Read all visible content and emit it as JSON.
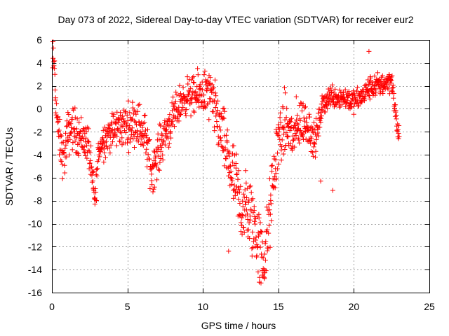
{
  "chart_data": {
    "type": "scatter",
    "title": "Day 073 of 2022, Sidereal Day-to-day VTEC variation (SDTVAR) for receiver eur2",
    "xlabel": "GPS time / hours",
    "ylabel": "SDTVAR / TECUs",
    "xlim": [
      0,
      25
    ],
    "ylim": [
      -16,
      6
    ],
    "xticks": [
      0,
      5,
      10,
      15,
      20,
      25
    ],
    "yticks": [
      -16,
      -14,
      -12,
      -10,
      -8,
      -6,
      -4,
      -2,
      0,
      2,
      4,
      6
    ],
    "grid": true,
    "marker": "+",
    "marker_color": "#ff0000",
    "series": [
      {
        "name": "SDTVAR",
        "profile": [
          [
            0.0,
            4.4
          ],
          [
            0.15,
            4.2
          ],
          [
            0.25,
            1.0
          ],
          [
            0.4,
            -2.0
          ],
          [
            0.6,
            -3.5
          ],
          [
            0.8,
            -4.5
          ],
          [
            1.0,
            -2.5
          ],
          [
            1.3,
            -1.5
          ],
          [
            1.6,
            -2.0
          ],
          [
            2.0,
            -2.5
          ],
          [
            2.4,
            -3.0
          ],
          [
            2.7,
            -6.5
          ],
          [
            2.85,
            -8.0
          ],
          [
            3.1,
            -3.5
          ],
          [
            3.5,
            -2.5
          ],
          [
            4.0,
            -2.0
          ],
          [
            4.5,
            -1.5
          ],
          [
            5.0,
            -1.5
          ],
          [
            5.5,
            -1.0
          ],
          [
            5.8,
            -1.5
          ],
          [
            6.2,
            -2.5
          ],
          [
            6.6,
            -5.5
          ],
          [
            7.0,
            -4.0
          ],
          [
            7.5,
            -2.0
          ],
          [
            8.0,
            -1.0
          ],
          [
            8.5,
            0.5
          ],
          [
            9.0,
            1.2
          ],
          [
            9.5,
            1.0
          ],
          [
            10.0,
            1.5
          ],
          [
            10.5,
            1.0
          ],
          [
            11.0,
            -1.0
          ],
          [
            11.5,
            -3.5
          ],
          [
            12.0,
            -6.0
          ],
          [
            12.5,
            -8.5
          ],
          [
            13.0,
            -9.0
          ],
          [
            13.5,
            -10.5
          ],
          [
            13.8,
            -12.5
          ],
          [
            14.0,
            -13.5
          ],
          [
            14.3,
            -11.0
          ],
          [
            14.6,
            -7.0
          ],
          [
            15.0,
            -2.5
          ],
          [
            15.5,
            -1.5
          ],
          [
            16.0,
            -2.5
          ],
          [
            16.5,
            -1.0
          ],
          [
            17.0,
            -1.5
          ],
          [
            17.4,
            -3.0
          ],
          [
            17.8,
            -0.5
          ],
          [
            18.0,
            0.5
          ],
          [
            18.5,
            1.2
          ],
          [
            19.0,
            1.0
          ],
          [
            19.5,
            1.0
          ],
          [
            20.0,
            0.6
          ],
          [
            20.5,
            1.0
          ],
          [
            21.0,
            1.8
          ],
          [
            21.5,
            2.0
          ],
          [
            22.0,
            2.2
          ],
          [
            22.5,
            2.6
          ],
          [
            22.8,
            -1.0
          ],
          [
            23.0,
            -2.4
          ]
        ],
        "spread": [
          [
            0.0,
            1.5
          ],
          [
            1.0,
            2.0
          ],
          [
            3.0,
            1.5
          ],
          [
            6.0,
            2.0
          ],
          [
            9.0,
            1.5
          ],
          [
            11.0,
            2.5
          ],
          [
            13.0,
            3.5
          ],
          [
            14.5,
            3.0
          ],
          [
            16.0,
            2.5
          ],
          [
            18.0,
            1.0
          ],
          [
            21.0,
            1.0
          ],
          [
            23.0,
            1.0
          ]
        ],
        "notable_points": [
          {
            "x": 21.0,
            "y": 5.0
          },
          {
            "x": 0.0,
            "y": -5.4
          },
          {
            "x": 2.85,
            "y": -8.3
          },
          {
            "x": 14.1,
            "y": -14.0
          },
          {
            "x": 11.7,
            "y": -12.4
          },
          {
            "x": 18.6,
            "y": -7.1
          },
          {
            "x": 17.8,
            "y": -6.3
          }
        ]
      }
    ]
  }
}
